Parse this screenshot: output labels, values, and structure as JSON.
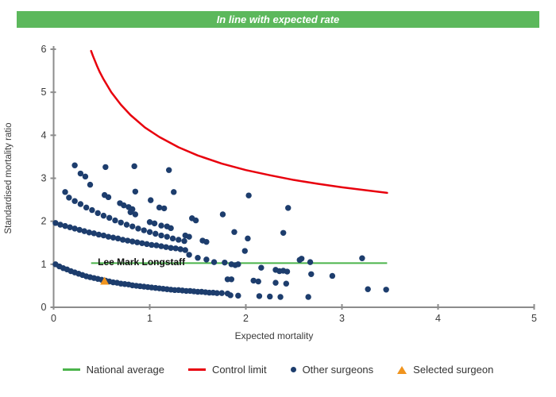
{
  "banner": {
    "text": "In line with expected rate",
    "bg_color": "#5cb85c",
    "text_color": "#ffffff"
  },
  "chart_data": {
    "type": "scatter",
    "xlabel": "Expected mortality",
    "ylabel": "Standardised mortality ratio",
    "xlim": [
      0,
      5
    ],
    "ylim": [
      0,
      6
    ],
    "xticks": [
      0,
      1,
      2,
      3,
      4,
      5
    ],
    "yticks": [
      0,
      1,
      2,
      3,
      4,
      5,
      6
    ],
    "grid": false,
    "axis_color": "#8c8c8c",
    "tick_label_color": "#3a3a3a",
    "national_average": {
      "label": "National average",
      "color": "#4bb44b",
      "y": 1.0,
      "x_start": 0.39,
      "x_end": 3.47
    },
    "control_limit": {
      "label": "Control limit",
      "color": "#e8000d",
      "points": [
        [
          0.39,
          5.96
        ],
        [
          0.41,
          5.84
        ],
        [
          0.45,
          5.62
        ],
        [
          0.48,
          5.47
        ],
        [
          0.52,
          5.3
        ],
        [
          0.6,
          5.0
        ],
        [
          0.7,
          4.71
        ],
        [
          0.8,
          4.47
        ],
        [
          0.95,
          4.18
        ],
        [
          1.1,
          3.96
        ],
        [
          1.3,
          3.72
        ],
        [
          1.5,
          3.53
        ],
        [
          1.75,
          3.34
        ],
        [
          2.0,
          3.19
        ],
        [
          2.25,
          3.07
        ],
        [
          2.5,
          2.96
        ],
        [
          2.75,
          2.87
        ],
        [
          3.0,
          2.79
        ],
        [
          3.25,
          2.72
        ],
        [
          3.47,
          2.66
        ]
      ]
    },
    "other_surgeons": {
      "label": "Other surgeons",
      "color": "#1d3d6d",
      "points": [
        [
          0.02,
          1.0
        ],
        [
          0.06,
          0.95
        ],
        [
          0.1,
          0.91
        ],
        [
          0.14,
          0.88
        ],
        [
          0.18,
          0.84
        ],
        [
          0.22,
          0.81
        ],
        [
          0.26,
          0.78
        ],
        [
          0.3,
          0.75
        ],
        [
          0.34,
          0.72
        ],
        [
          0.38,
          0.7
        ],
        [
          0.42,
          0.68
        ],
        [
          0.46,
          0.66
        ],
        [
          0.5,
          0.64
        ],
        [
          0.54,
          0.62
        ],
        [
          0.58,
          0.6
        ],
        [
          0.62,
          0.58
        ],
        [
          0.66,
          0.57
        ],
        [
          0.7,
          0.55
        ],
        [
          0.74,
          0.54
        ],
        [
          0.78,
          0.53
        ],
        [
          0.82,
          0.51
        ],
        [
          0.86,
          0.5
        ],
        [
          0.9,
          0.49
        ],
        [
          0.94,
          0.48
        ],
        [
          0.98,
          0.47
        ],
        [
          1.02,
          0.46
        ],
        [
          1.06,
          0.45
        ],
        [
          1.1,
          0.44
        ],
        [
          1.14,
          0.43
        ],
        [
          1.18,
          0.42
        ],
        [
          1.22,
          0.41
        ],
        [
          1.26,
          0.4
        ],
        [
          1.3,
          0.4
        ],
        [
          1.34,
          0.39
        ],
        [
          1.38,
          0.38
        ],
        [
          1.42,
          0.38
        ],
        [
          1.46,
          0.37
        ],
        [
          1.5,
          0.36
        ],
        [
          1.54,
          0.36
        ],
        [
          1.58,
          0.35
        ],
        [
          1.62,
          0.34
        ],
        [
          1.66,
          0.34
        ],
        [
          1.7,
          0.33
        ],
        [
          1.75,
          0.33
        ],
        [
          1.81,
          0.32
        ],
        [
          1.84,
          0.28
        ],
        [
          1.92,
          0.27
        ],
        [
          2.14,
          0.26
        ],
        [
          2.25,
          0.25
        ],
        [
          2.36,
          0.24
        ],
        [
          2.65,
          0.24
        ],
        [
          0.02,
          1.96
        ],
        [
          0.07,
          1.92
        ],
        [
          0.12,
          1.89
        ],
        [
          0.17,
          1.86
        ],
        [
          0.22,
          1.83
        ],
        [
          0.27,
          1.8
        ],
        [
          0.32,
          1.77
        ],
        [
          0.37,
          1.74
        ],
        [
          0.42,
          1.72
        ],
        [
          0.47,
          1.69
        ],
        [
          0.52,
          1.67
        ],
        [
          0.57,
          1.64
        ],
        [
          0.62,
          1.62
        ],
        [
          0.67,
          1.6
        ],
        [
          0.72,
          1.57
        ],
        [
          0.77,
          1.55
        ],
        [
          0.82,
          1.53
        ],
        [
          0.87,
          1.51
        ],
        [
          0.92,
          1.49
        ],
        [
          0.97,
          1.47
        ],
        [
          1.02,
          1.45
        ],
        [
          1.07,
          1.44
        ],
        [
          1.12,
          1.42
        ],
        [
          1.17,
          1.4
        ],
        [
          1.22,
          1.38
        ],
        [
          1.27,
          1.37
        ],
        [
          1.32,
          1.35
        ],
        [
          1.37,
          1.33
        ],
        [
          1.41,
          1.22
        ],
        [
          1.5,
          1.15
        ],
        [
          1.59,
          1.11
        ],
        [
          1.67,
          1.05
        ],
        [
          1.78,
          1.04
        ],
        [
          1.85,
          1.0
        ],
        [
          1.89,
          0.98
        ],
        [
          1.92,
          1.0
        ],
        [
          0.16,
          2.55
        ],
        [
          0.22,
          2.47
        ],
        [
          0.28,
          2.4
        ],
        [
          0.34,
          2.32
        ],
        [
          0.4,
          2.26
        ],
        [
          0.46,
          2.19
        ],
        [
          0.52,
          2.13
        ],
        [
          0.58,
          2.08
        ],
        [
          0.64,
          2.02
        ],
        [
          0.7,
          1.97
        ],
        [
          0.76,
          1.92
        ],
        [
          0.82,
          1.88
        ],
        [
          0.88,
          1.83
        ],
        [
          0.94,
          1.79
        ],
        [
          1.0,
          1.75
        ],
        [
          1.06,
          1.71
        ],
        [
          1.12,
          1.67
        ],
        [
          1.18,
          1.64
        ],
        [
          1.24,
          1.6
        ],
        [
          1.3,
          1.57
        ],
        [
          1.36,
          1.54
        ],
        [
          0.28,
          3.11
        ],
        [
          0.33,
          3.04
        ],
        [
          0.38,
          2.85
        ],
        [
          0.53,
          2.61
        ],
        [
          0.57,
          2.56
        ],
        [
          0.69,
          2.42
        ],
        [
          0.73,
          2.37
        ],
        [
          0.78,
          2.33
        ],
        [
          0.82,
          2.28
        ],
        [
          1.0,
          1.98
        ],
        [
          1.05,
          1.95
        ],
        [
          1.12,
          1.9
        ],
        [
          1.18,
          1.88
        ],
        [
          1.22,
          1.84
        ],
        [
          0.22,
          3.3
        ],
        [
          0.54,
          3.26
        ],
        [
          0.84,
          3.28
        ],
        [
          1.2,
          3.19
        ],
        [
          0.12,
          2.68
        ],
        [
          0.85,
          2.69
        ],
        [
          1.25,
          2.68
        ],
        [
          1.01,
          2.49
        ],
        [
          1.1,
          2.32
        ],
        [
          1.15,
          2.3
        ],
        [
          0.8,
          2.21
        ],
        [
          0.85,
          2.16
        ],
        [
          1.44,
          2.07
        ],
        [
          1.48,
          2.02
        ],
        [
          1.76,
          2.16
        ],
        [
          2.03,
          2.6
        ],
        [
          2.44,
          2.31
        ],
        [
          1.37,
          1.67
        ],
        [
          1.41,
          1.64
        ],
        [
          1.55,
          1.55
        ],
        [
          1.59,
          1.52
        ],
        [
          1.88,
          1.75
        ],
        [
          2.39,
          1.73
        ],
        [
          2.02,
          1.6
        ],
        [
          1.99,
          1.31
        ],
        [
          2.58,
          1.13
        ],
        [
          2.56,
          1.1
        ],
        [
          2.67,
          1.05
        ],
        [
          3.21,
          1.14
        ],
        [
          2.16,
          0.92
        ],
        [
          2.31,
          0.87
        ],
        [
          2.35,
          0.84
        ],
        [
          2.39,
          0.85
        ],
        [
          2.43,
          0.83
        ],
        [
          2.68,
          0.77
        ],
        [
          2.9,
          0.73
        ],
        [
          1.81,
          0.65
        ],
        [
          1.85,
          0.65
        ],
        [
          2.08,
          0.62
        ],
        [
          2.13,
          0.6
        ],
        [
          2.31,
          0.57
        ],
        [
          2.42,
          0.55
        ],
        [
          3.27,
          0.42
        ],
        [
          3.46,
          0.41
        ]
      ]
    },
    "selected_surgeon": {
      "label": "Selected surgeon",
      "color": "#f0941e",
      "name": "Lee Mark Longstaff",
      "point": [
        0.53,
        0.61
      ],
      "name_label_pos": [
        0.46,
        1.05
      ]
    }
  },
  "legend": {
    "items": [
      {
        "label": "National average",
        "marker": "line",
        "color": "#4bb44b"
      },
      {
        "label": "Control limit",
        "marker": "line",
        "color": "#e8000d"
      },
      {
        "label": "Other surgeons",
        "marker": "dot",
        "color": "#1d3d6d"
      },
      {
        "label": "Selected surgeon",
        "marker": "triangle",
        "color": "#f0941e"
      }
    ]
  }
}
